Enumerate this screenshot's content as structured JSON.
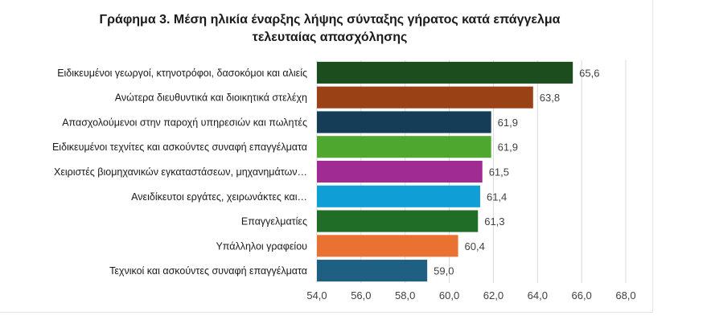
{
  "chart_data": {
    "type": "bar",
    "orientation": "horizontal",
    "title": "Γράφημα 3. Μέση ηλικία έναρξης λήψης σύνταξης γήρατος κατά επάγγελμα τελευταίας απασχόλησης",
    "title_lines": [
      "Γράφημα 3. Μέση ηλικία έναρξης λήψης σύνταξης γήρατος κατά επάγγελμα",
      "τελευταίας απασχόλησης"
    ],
    "categories": [
      "Ειδικευμένοι γεωργοί, κτηνοτρόφοι, δασοκόμοι και αλιείς",
      "Ανώτερα διευθυντικά και διοικητικά στελέχη",
      "Απασχολούμενοι στην παροχή υπηρεσιών και πωλητές",
      "Ειδικευμένοι τεχνίτες και ασκούντες συναφή επαγγέλματα",
      "Χειριστές βιομηχανικών εγκαταστάσεων, μηχανημάτων…",
      "Ανειδίκευτοι εργάτες, χειρωνάκτες και…",
      "Επαγγελματίες",
      "Υπάλληλοι γραφείου",
      "Τεχνικοί και ασκούντες συναφή επαγγέλματα"
    ],
    "values": [
      65.6,
      63.8,
      61.9,
      61.9,
      61.5,
      61.4,
      61.3,
      60.4,
      59.0
    ],
    "value_labels": [
      "65,6",
      "63,8",
      "61,9",
      "61,9",
      "61,5",
      "61,4",
      "61,3",
      "60,4",
      "59,0"
    ],
    "colors": [
      "#1b4d1f",
      "#9a4116",
      "#153d57",
      "#4ea72e",
      "#a02b93",
      "#0f9ed5",
      "#1f6d26",
      "#e97132",
      "#1f5f82"
    ],
    "xlim": [
      54,
      68
    ],
    "xticks": [
      54,
      56,
      58,
      60,
      62,
      64,
      66,
      68
    ],
    "xtick_labels": [
      "54,0",
      "56,0",
      "58,0",
      "60,0",
      "62,0",
      "64,0",
      "66,0",
      "68,0"
    ],
    "xlabel": "",
    "ylabel": "",
    "grid": "vertical",
    "legend": "none"
  }
}
